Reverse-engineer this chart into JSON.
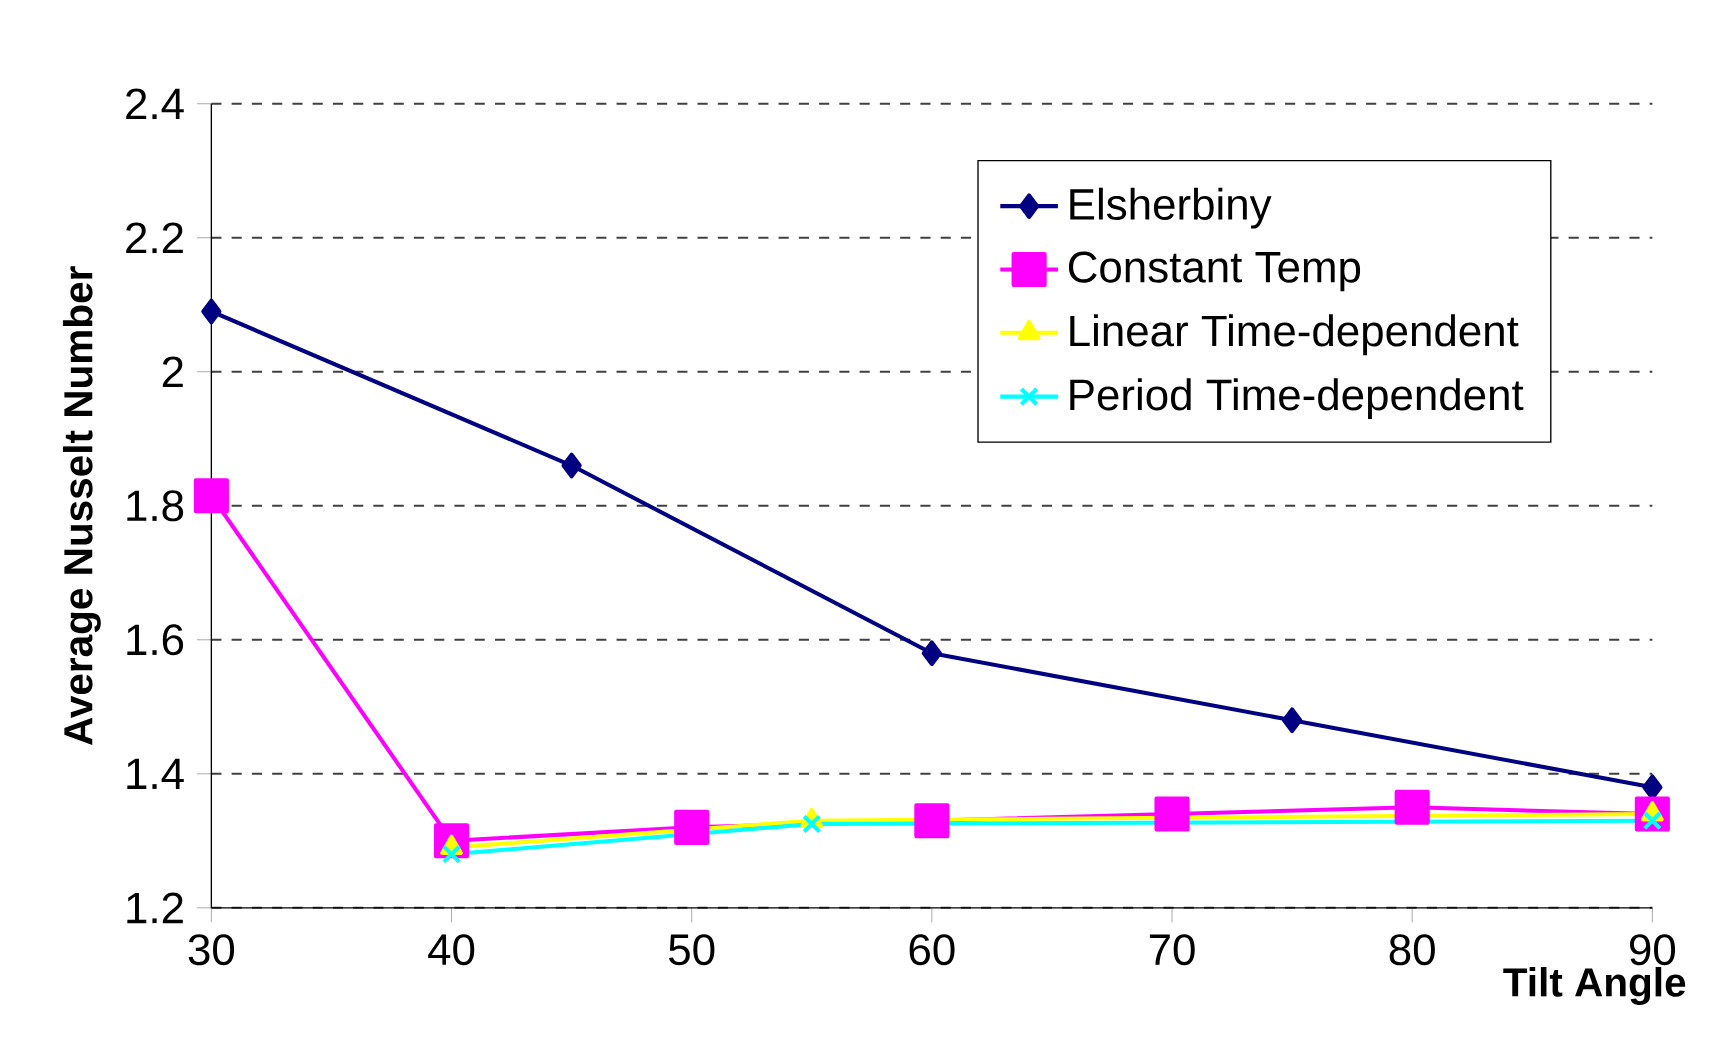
{
  "chart_data": {
    "type": "line",
    "xlabel": "Tilt Angle",
    "ylabel": "Average Nusselt Number",
    "xlim": [
      30,
      90
    ],
    "ylim": [
      1.2,
      2.4
    ],
    "xticks": [
      30,
      40,
      50,
      60,
      70,
      80,
      90
    ],
    "yticks": [
      1.2,
      1.4,
      1.6,
      1.8,
      2,
      2.2,
      2.4
    ],
    "grid": "y",
    "legend": "top right",
    "series": [
      {
        "name": "Elsherbiny",
        "color": "#000080",
        "marker": "diamond",
        "x": [
          30,
          45,
          60,
          75,
          90
        ],
        "values": [
          2.09,
          1.86,
          1.58,
          1.48,
          1.38
        ]
      },
      {
        "name": "Constant Temp",
        "color": "#ff00ff",
        "marker": "square",
        "x": [
          30,
          40,
          50,
          60,
          70,
          80,
          90
        ],
        "values": [
          1.815,
          1.3,
          1.32,
          1.33,
          1.34,
          1.35,
          1.34
        ]
      },
      {
        "name": "Linear Time-dependent",
        "color": "#ffff00",
        "marker": "triangle",
        "x": [
          40,
          55,
          90
        ],
        "values": [
          1.29,
          1.33,
          1.34
        ]
      },
      {
        "name": "Period Time-dependent",
        "color": "#00ffff",
        "marker": "cross",
        "x": [
          40,
          55,
          90
        ],
        "values": [
          1.28,
          1.325,
          1.33
        ]
      }
    ]
  }
}
